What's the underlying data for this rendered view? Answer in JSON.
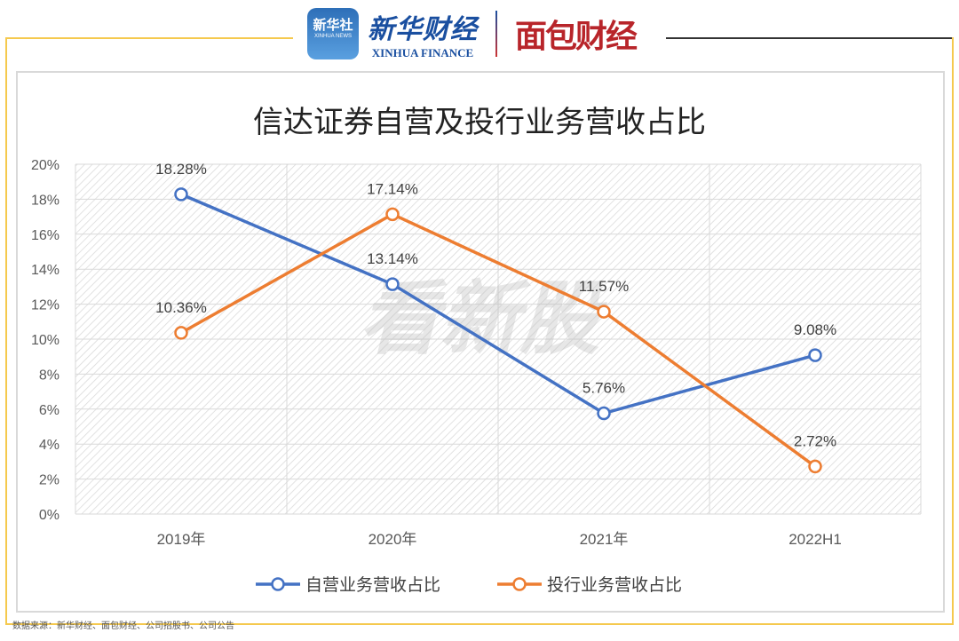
{
  "header": {
    "xinhua_icon_cn": "新华社",
    "xinhua_icon_en": "XINHUA NEWS",
    "xinhua_finance_cn": "新华财经",
    "xinhua_finance_en": "XINHUA FINANCE",
    "mianbao": "面包财经"
  },
  "source": "数据来源：新华财经、面包财经、公司招股书、公司公告",
  "watermark": "看新股",
  "colors": {
    "series1": "#4472c4",
    "series2": "#ed7d31",
    "frame": "#f5c94e"
  },
  "chart_data": {
    "type": "line",
    "title": "信达证券自营及投行业务营收占比",
    "categories": [
      "2019年",
      "2020年",
      "2021年",
      "2022H1"
    ],
    "series": [
      {
        "name": "自营业务营收占比",
        "values": [
          18.28,
          13.14,
          5.76,
          9.08
        ],
        "labels": [
          "18.28%",
          "13.14%",
          "5.76%",
          "9.08%"
        ],
        "color": "#4472c4"
      },
      {
        "name": "投行业务营收占比",
        "values": [
          10.36,
          17.14,
          11.57,
          2.72
        ],
        "labels": [
          "10.36%",
          "17.14%",
          "11.57%",
          "2.72%"
        ],
        "color": "#ed7d31"
      }
    ],
    "ylim": [
      0,
      20
    ],
    "yticks": [
      "0%",
      "2%",
      "4%",
      "6%",
      "8%",
      "10%",
      "12%",
      "14%",
      "16%",
      "18%",
      "20%"
    ],
    "grid": true,
    "legend": "bottom"
  }
}
